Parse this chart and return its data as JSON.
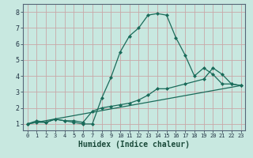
{
  "xlabel": "Humidex (Indice chaleur)",
  "background_color": "#c8e8e0",
  "grid_color": "#c8a8a8",
  "line_color": "#1a6b5a",
  "line1_x": [
    0,
    1,
    2,
    3,
    4,
    5,
    6,
    7,
    8,
    9,
    10,
    11,
    12,
    13,
    14,
    15,
    16,
    17,
    18,
    19,
    20,
    21,
    22,
    23
  ],
  "line1_y": [
    1.0,
    1.2,
    1.1,
    1.3,
    1.2,
    1.1,
    1.0,
    1.0,
    2.6,
    3.9,
    5.5,
    6.5,
    7.0,
    7.8,
    7.9,
    7.8,
    6.4,
    5.3,
    4.0,
    4.5,
    4.1,
    3.5,
    3.5,
    3.4
  ],
  "line2_x": [
    0,
    1,
    2,
    3,
    4,
    5,
    6,
    7,
    8,
    9,
    10,
    11,
    12,
    13,
    14,
    15,
    17,
    19,
    20,
    21,
    22,
    23
  ],
  "line2_y": [
    1.0,
    1.1,
    1.1,
    1.3,
    1.2,
    1.2,
    1.1,
    1.8,
    2.0,
    2.1,
    2.2,
    2.3,
    2.5,
    2.8,
    3.2,
    3.2,
    3.5,
    3.8,
    4.5,
    4.1,
    3.5,
    3.4
  ],
  "line3_x": [
    0,
    23
  ],
  "line3_y": [
    1.0,
    3.4
  ],
  "xlim": [
    -0.5,
    23.5
  ],
  "ylim": [
    0.6,
    8.5
  ],
  "yticks": [
    1,
    2,
    3,
    4,
    5,
    6,
    7,
    8
  ],
  "xticks": [
    0,
    1,
    2,
    3,
    4,
    5,
    6,
    7,
    8,
    9,
    10,
    11,
    12,
    13,
    14,
    15,
    16,
    17,
    18,
    19,
    20,
    21,
    22,
    23
  ]
}
